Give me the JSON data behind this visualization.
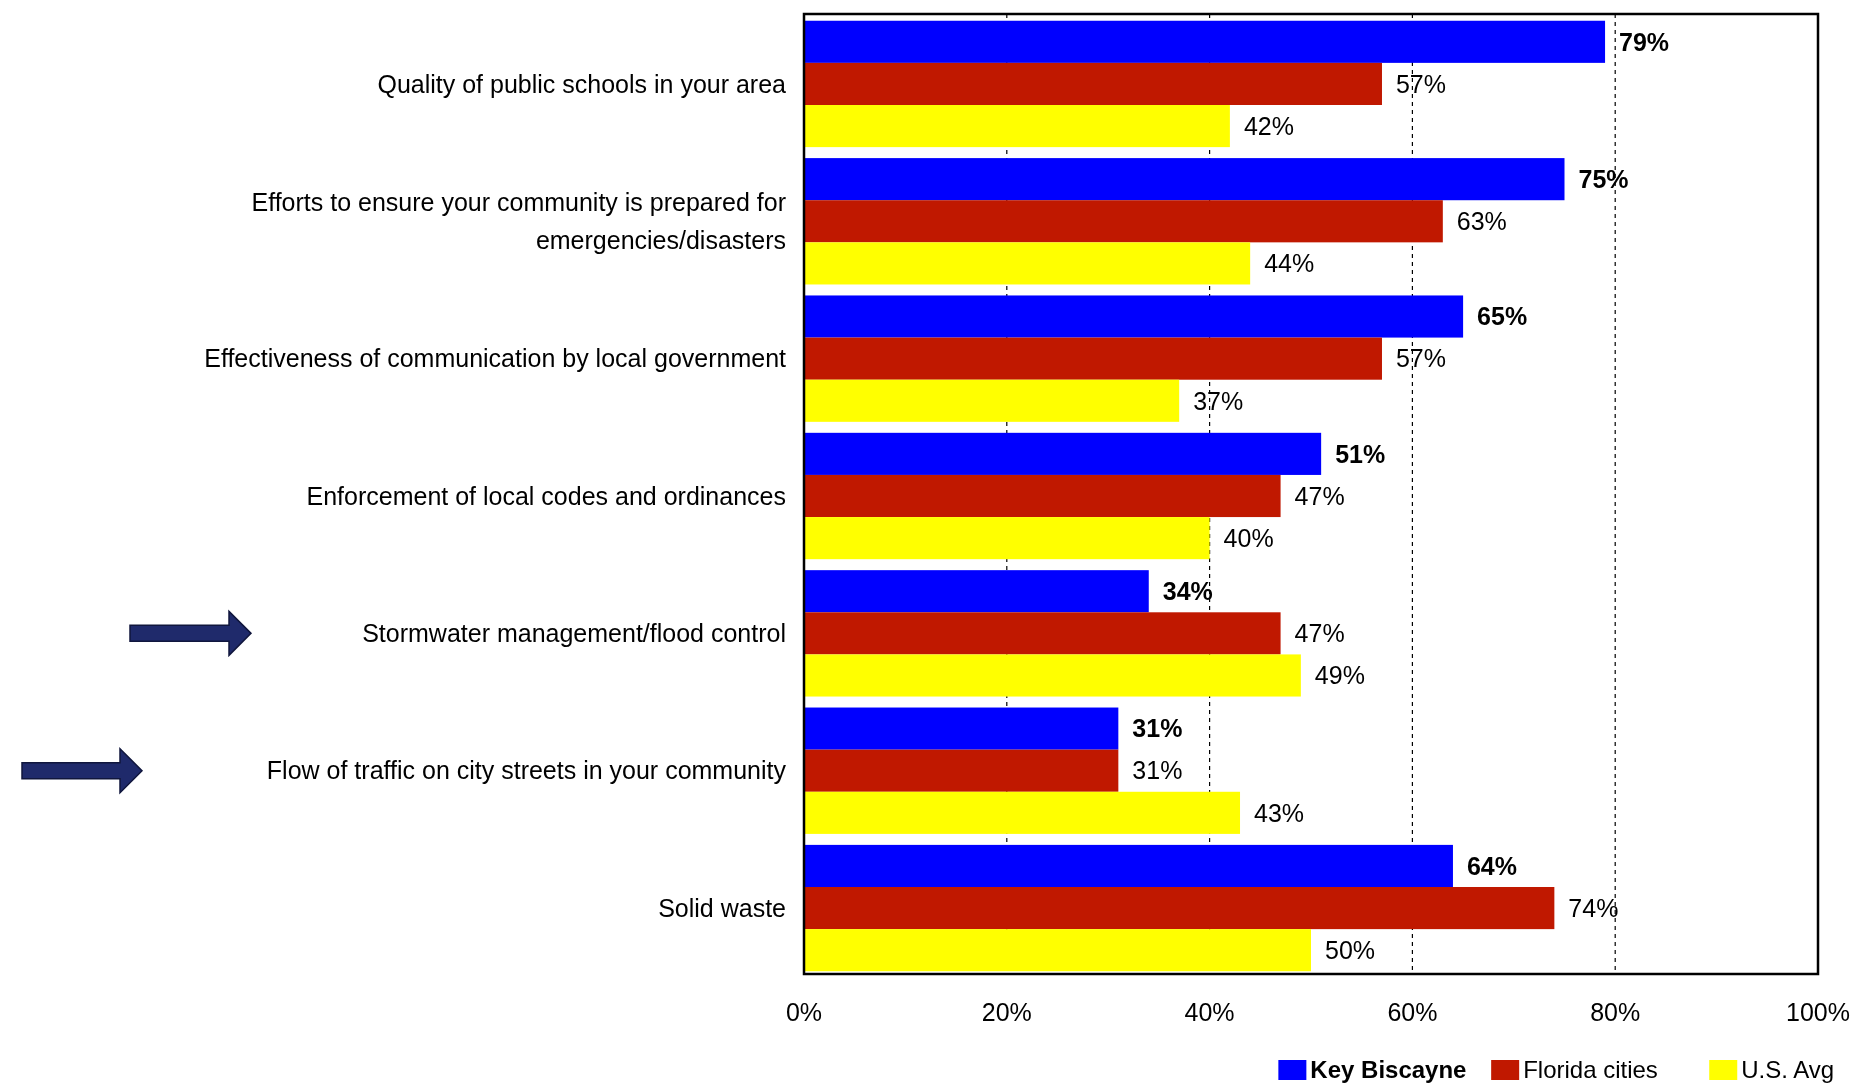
{
  "chart_data": {
    "type": "bar",
    "orientation": "horizontal",
    "categories": [
      "Quality of public schools in your area",
      "Efforts to ensure your community is prepared for emergencies/disasters",
      "Effectiveness of communication by local government",
      "Enforcement of local codes and ordinances",
      "Stormwater management/flood control",
      "Flow of traffic on city streets in your community",
      "Solid waste"
    ],
    "series": [
      {
        "name": "Key Biscayne",
        "color": "#0000ff",
        "values": [
          79,
          75,
          65,
          51,
          34,
          31,
          64
        ],
        "value_labels": [
          "79%",
          "75%",
          "65%",
          "51%",
          "34%",
          "31%",
          "64%"
        ]
      },
      {
        "name": "Florida cities",
        "color": "#c01800",
        "values": [
          57,
          63,
          57,
          47,
          47,
          31,
          74
        ],
        "value_labels": [
          "57%",
          "63%",
          "57%",
          "47%",
          "47%",
          "31%",
          "74%"
        ]
      },
      {
        "name": "U.S. Avg",
        "color": "#ffff00",
        "values": [
          42,
          44,
          37,
          40,
          49,
          43,
          50
        ],
        "value_labels": [
          "42%",
          "44%",
          "37%",
          "40%",
          "49%",
          "43%",
          "50%"
        ]
      }
    ],
    "xlim": [
      0,
      100
    ],
    "xticks": [
      {
        "value": 0,
        "label": "0%"
      },
      {
        "value": 20,
        "label": "20%"
      },
      {
        "value": 40,
        "label": "40%"
      },
      {
        "value": 60,
        "label": "60%"
      },
      {
        "value": 80,
        "label": "80%"
      },
      {
        "value": 100,
        "label": "100%"
      }
    ],
    "grid": "x",
    "legend": "bottom right"
  }
}
